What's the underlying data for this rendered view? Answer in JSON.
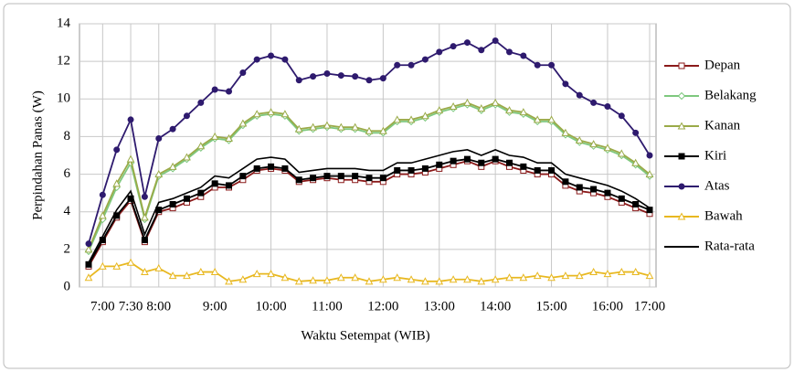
{
  "chart_data": {
    "type": "line",
    "y_label": "Perpindahan Panas (W)",
    "x_label": "Waktu Setempat (WIB)",
    "categories": [
      null,
      "7:00",
      null,
      "7:30",
      null,
      "8:00",
      null,
      null,
      null,
      "9:00",
      null,
      null,
      null,
      "10:00",
      null,
      null,
      null,
      "11:00",
      null,
      null,
      null,
      "12:00",
      null,
      null,
      null,
      "13:00",
      null,
      null,
      null,
      "14:00",
      null,
      null,
      null,
      "15:00",
      null,
      null,
      null,
      "16:00",
      null,
      null,
      "17:00"
    ],
    "ylim": [
      0,
      14
    ],
    "yticks": [
      0,
      2,
      4,
      6,
      8,
      10,
      12,
      14
    ],
    "grid": true,
    "legend": "right",
    "series": [
      {
        "name": "Depan",
        "color": "#8b1a1a",
        "marker": "open-square",
        "values": [
          1.1,
          2.4,
          3.7,
          4.6,
          2.4,
          4.0,
          4.2,
          4.5,
          4.8,
          5.3,
          5.3,
          5.7,
          6.2,
          6.3,
          6.2,
          5.6,
          5.7,
          5.8,
          5.7,
          5.7,
          5.6,
          5.6,
          6.0,
          6.0,
          6.1,
          6.3,
          6.5,
          6.7,
          6.4,
          6.7,
          6.4,
          6.2,
          6.0,
          6.0,
          5.4,
          5.1,
          5.0,
          4.8,
          4.5,
          4.2,
          3.9
        ]
      },
      {
        "name": "Belakang",
        "color": "#7ec87e",
        "marker": "open-diamond",
        "values": [
          1.9,
          3.6,
          5.3,
          6.6,
          3.6,
          5.9,
          6.3,
          6.8,
          7.4,
          7.9,
          7.8,
          8.6,
          9.1,
          9.2,
          9.1,
          8.3,
          8.4,
          8.5,
          8.4,
          8.4,
          8.2,
          8.2,
          8.8,
          8.8,
          9.0,
          9.3,
          9.5,
          9.7,
          9.4,
          9.7,
          9.3,
          9.2,
          8.8,
          8.8,
          8.1,
          7.7,
          7.5,
          7.3,
          7.0,
          6.5,
          5.9
        ]
      },
      {
        "name": "Kanan",
        "color": "#9aaa48",
        "marker": "open-triangle",
        "values": [
          2.0,
          3.8,
          5.5,
          6.8,
          3.7,
          6.0,
          6.4,
          6.9,
          7.5,
          8.0,
          7.9,
          8.7,
          9.2,
          9.3,
          9.2,
          8.4,
          8.5,
          8.6,
          8.5,
          8.5,
          8.3,
          8.3,
          8.9,
          8.9,
          9.1,
          9.4,
          9.6,
          9.8,
          9.5,
          9.8,
          9.4,
          9.3,
          8.9,
          8.9,
          8.2,
          7.8,
          7.6,
          7.4,
          7.1,
          6.6,
          6.0
        ]
      },
      {
        "name": "Kiri",
        "color": "#000000",
        "marker": "square",
        "values": [
          1.2,
          2.5,
          3.8,
          4.7,
          2.5,
          4.1,
          4.4,
          4.7,
          5.0,
          5.5,
          5.4,
          5.9,
          6.3,
          6.4,
          6.3,
          5.7,
          5.8,
          5.9,
          5.9,
          5.9,
          5.8,
          5.8,
          6.2,
          6.2,
          6.3,
          6.5,
          6.7,
          6.8,
          6.6,
          6.8,
          6.6,
          6.4,
          6.2,
          6.2,
          5.6,
          5.3,
          5.2,
          5.0,
          4.7,
          4.4,
          4.1
        ]
      },
      {
        "name": "Atas",
        "color": "#2e1a6e",
        "marker": "circle",
        "values": [
          2.3,
          4.9,
          7.3,
          8.9,
          4.8,
          7.9,
          8.4,
          9.1,
          9.8,
          10.5,
          10.4,
          11.4,
          12.1,
          12.3,
          12.1,
          11.0,
          11.2,
          11.35,
          11.25,
          11.2,
          11.0,
          11.1,
          11.8,
          11.8,
          12.1,
          12.5,
          12.8,
          13.0,
          12.6,
          13.1,
          12.5,
          12.3,
          11.8,
          11.8,
          10.8,
          10.2,
          9.8,
          9.6,
          9.1,
          8.2,
          7.0
        ]
      },
      {
        "name": "Bawah",
        "color": "#e8b820",
        "marker": "open-triangle",
        "values": [
          0.5,
          1.1,
          1.1,
          1.3,
          0.8,
          1.0,
          0.6,
          0.6,
          0.8,
          0.8,
          0.3,
          0.4,
          0.7,
          0.7,
          0.5,
          0.3,
          0.35,
          0.35,
          0.5,
          0.5,
          0.3,
          0.4,
          0.5,
          0.4,
          0.3,
          0.3,
          0.4,
          0.4,
          0.3,
          0.4,
          0.5,
          0.5,
          0.6,
          0.5,
          0.6,
          0.6,
          0.8,
          0.7,
          0.8,
          0.8,
          0.6
        ]
      },
      {
        "name": "Rata-rata",
        "color": "#000000",
        "marker": "none",
        "values": [
          1.3,
          2.7,
          4.1,
          5.1,
          2.8,
          4.5,
          4.7,
          5.0,
          5.3,
          5.9,
          5.8,
          6.3,
          6.8,
          6.9,
          6.8,
          6.1,
          6.2,
          6.3,
          6.3,
          6.3,
          6.2,
          6.2,
          6.6,
          6.6,
          6.8,
          7.0,
          7.2,
          7.3,
          7.0,
          7.3,
          7.0,
          6.9,
          6.6,
          6.6,
          6.0,
          5.8,
          5.6,
          5.4,
          5.1,
          4.7,
          4.2
        ]
      }
    ]
  }
}
